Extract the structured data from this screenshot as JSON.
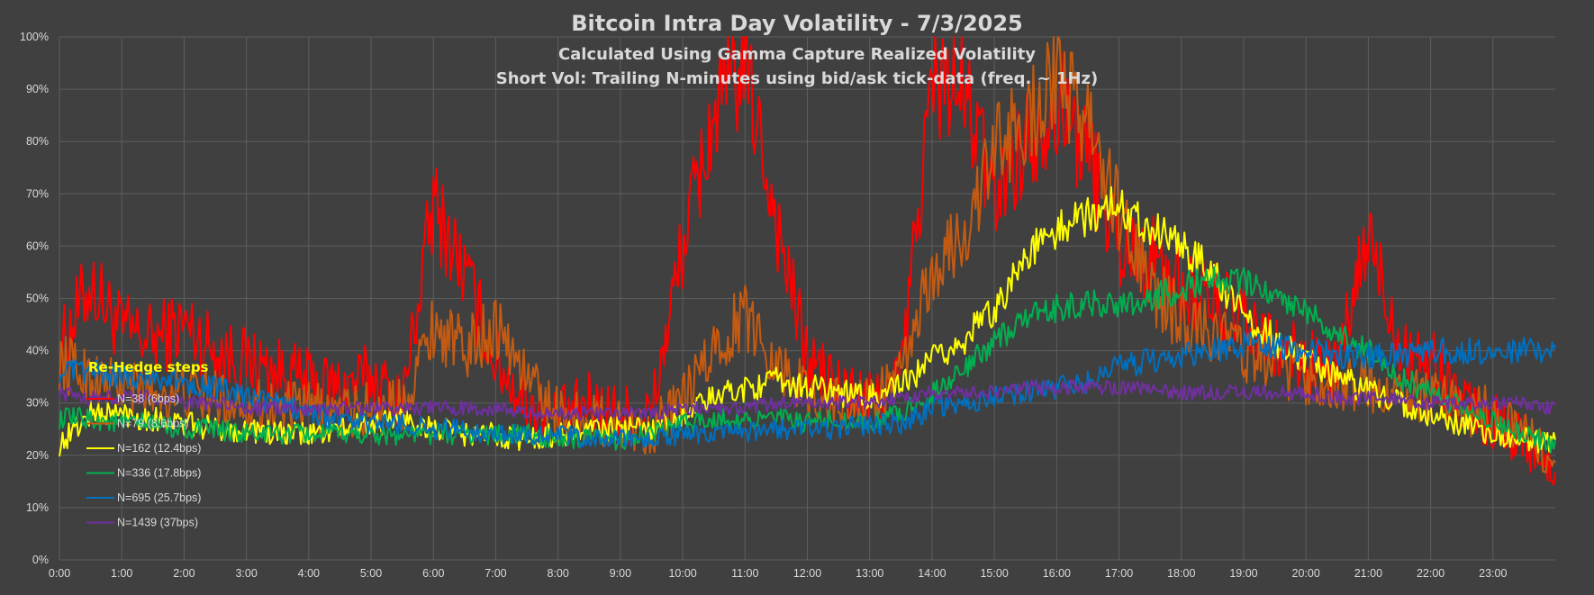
{
  "chart_data": {
    "type": "line",
    "title": "Bitcoin Intra Day Volatility - 7/3/2025",
    "subtitle": "Calculated Using Gamma Capture Realized Volatility",
    "subtitle2": "Short Vol: Trailing N-minutes using bid/ask tick-data (freq. ~ 1Hz)",
    "xlabel": "",
    "ylabel": "",
    "x_range_minutes": [
      0,
      1440
    ],
    "ylim": [
      0,
      100
    ],
    "y_ticks": [
      "0%",
      "10%",
      "20%",
      "30%",
      "40%",
      "50%",
      "60%",
      "70%",
      "80%",
      "90%",
      "100%"
    ],
    "x_ticks": [
      "0:00",
      "1:00",
      "2:00",
      "3:00",
      "4:00",
      "5:00",
      "6:00",
      "7:00",
      "8:00",
      "9:00",
      "10:00",
      "11:00",
      "12:00",
      "13:00",
      "14:00",
      "15:00",
      "16:00",
      "17:00",
      "18:00",
      "19:00",
      "20:00",
      "21:00",
      "22:00",
      "23:00"
    ],
    "grid": true,
    "legend": {
      "title": "Re-Hedge steps",
      "placement": "left-center"
    },
    "x_sample_minutes": [
      0,
      30,
      60,
      90,
      120,
      150,
      180,
      210,
      240,
      270,
      300,
      330,
      360,
      390,
      420,
      450,
      480,
      510,
      540,
      570,
      600,
      630,
      660,
      690,
      720,
      750,
      780,
      810,
      840,
      870,
      900,
      930,
      960,
      990,
      1020,
      1050,
      1080,
      1110,
      1140,
      1170,
      1200,
      1230,
      1260,
      1290,
      1320,
      1350,
      1380,
      1410,
      1440
    ],
    "series": [
      {
        "name": "N=38 (6bps)",
        "color": "#ff0000",
        "values": [
          40,
          53,
          44,
          42,
          45,
          40,
          38,
          36,
          34,
          33,
          35,
          30,
          68,
          55,
          38,
          30,
          27,
          30,
          28,
          28,
          60,
          85,
          95,
          65,
          38,
          33,
          30,
          35,
          92,
          90,
          70,
          80,
          88,
          78,
          60,
          58,
          52,
          50,
          45,
          40,
          38,
          36,
          62,
          42,
          38,
          30,
          26,
          24,
          15
        ]
      },
      {
        "name": "N=79 (8.6bps)",
        "color": "#c55a11",
        "values": [
          38,
          35,
          33,
          32,
          32,
          31,
          30,
          29,
          29,
          28,
          29,
          30,
          45,
          40,
          45,
          35,
          28,
          27,
          26,
          25,
          30,
          40,
          47,
          38,
          32,
          30,
          30,
          35,
          55,
          62,
          78,
          84,
          92,
          84,
          66,
          52,
          46,
          44,
          40,
          37,
          35,
          34,
          33,
          32,
          31,
          29,
          28,
          25,
          17
        ]
      },
      {
        "name": "N=162 (12.4bps)",
        "color": "#ffff00",
        "values": [
          22,
          28,
          28,
          27,
          26,
          25,
          25,
          24,
          24,
          25,
          26,
          27,
          25,
          24,
          24,
          23,
          24,
          25,
          25,
          25,
          28,
          31,
          33,
          34,
          33,
          32,
          31,
          33,
          38,
          42,
          48,
          58,
          63,
          66,
          68,
          64,
          60,
          55,
          47,
          42,
          38,
          35,
          32,
          30,
          28,
          26,
          24,
          23,
          22
        ]
      },
      {
        "name": "N=336 (17.8bps)",
        "color": "#00b050",
        "values": [
          27,
          27,
          26,
          26,
          25,
          25,
          24,
          24,
          24,
          24,
          24,
          24,
          24,
          24,
          24,
          24,
          23,
          23,
          23,
          24,
          26,
          27,
          27,
          27,
          26,
          27,
          26,
          28,
          32,
          36,
          42,
          46,
          48,
          49,
          49,
          50,
          52,
          54,
          53,
          51,
          48,
          43,
          40,
          35,
          32,
          29,
          27,
          24,
          22
        ]
      },
      {
        "name": "N=695 (25.7bps)",
        "color": "#0070c0",
        "values": [
          36,
          36,
          35,
          35,
          34,
          33,
          31,
          30,
          28,
          27,
          26,
          26,
          25,
          25,
          24,
          24,
          24,
          23,
          23,
          23,
          24,
          24,
          24,
          25,
          25,
          25,
          26,
          26,
          29,
          30,
          31,
          32,
          33,
          34,
          37,
          38,
          39,
          40,
          41,
          41,
          40,
          39,
          39,
          39,
          40,
          40,
          40,
          40,
          40
        ]
      },
      {
        "name": "N=1439 (37bps)",
        "color": "#7030a0",
        "values": [
          32,
          31,
          31,
          31,
          30,
          30,
          29,
          29,
          29,
          29,
          29,
          29,
          29,
          29,
          29,
          28,
          28,
          28,
          28,
          28,
          29,
          29,
          29,
          30,
          30,
          30,
          30,
          31,
          32,
          32,
          32,
          33,
          33,
          33,
          33,
          33,
          32,
          32,
          32,
          32,
          32,
          31,
          31,
          31,
          30,
          30,
          30,
          30,
          29
        ]
      }
    ]
  }
}
